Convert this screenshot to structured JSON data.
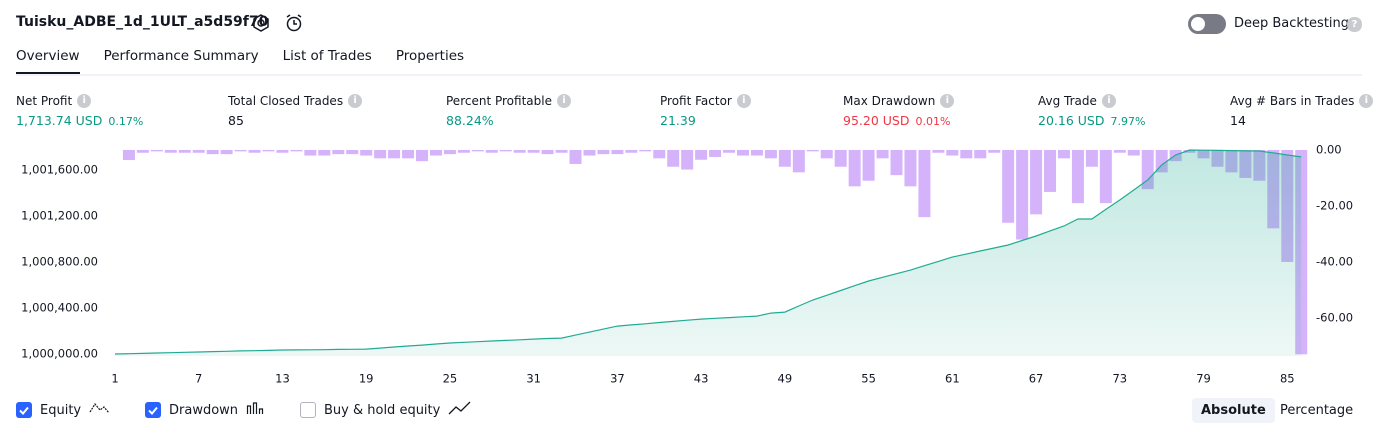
{
  "header": {
    "title": "Tuisku_ADBE_1d_1ULT_a5d59f70",
    "deep_backtesting": "Deep Backtesting",
    "help": "?"
  },
  "tabs": [
    "Overview",
    "Performance Summary",
    "List of Trades",
    "Properties"
  ],
  "metrics": [
    {
      "label": "Net Profit",
      "value": "1,713.74 USD",
      "pct": "0.17%",
      "color": "#089981"
    },
    {
      "label": "Total Closed Trades",
      "value": "85",
      "color": "#131722"
    },
    {
      "label": "Percent Profitable",
      "value": "88.24%",
      "color": "#089981"
    },
    {
      "label": "Profit Factor",
      "value": "21.39",
      "color": "#089981"
    },
    {
      "label": "Max Drawdown",
      "value": "95.20 USD",
      "pct": "0.01%",
      "color": "#f23645"
    },
    {
      "label": "Avg Trade",
      "value": "20.16 USD",
      "pct": "7.97%",
      "color": "#089981"
    },
    {
      "label": "Avg # Bars in Trades",
      "value": "14",
      "color": "#131722"
    }
  ],
  "chart_data": {
    "type": "combo",
    "x": [
      1,
      2,
      3,
      4,
      5,
      6,
      7,
      8,
      9,
      10,
      11,
      12,
      13,
      14,
      15,
      16,
      17,
      18,
      19,
      20,
      21,
      22,
      23,
      24,
      25,
      26,
      27,
      28,
      29,
      30,
      31,
      32,
      33,
      34,
      35,
      36,
      37,
      38,
      39,
      40,
      41,
      42,
      43,
      44,
      45,
      46,
      47,
      48,
      49,
      50,
      51,
      52,
      53,
      54,
      55,
      56,
      57,
      58,
      59,
      60,
      61,
      62,
      63,
      64,
      65,
      66,
      67,
      68,
      69,
      70,
      71,
      72,
      73,
      74,
      75,
      76,
      77,
      78,
      79,
      80,
      81,
      82,
      83,
      84,
      85,
      86
    ],
    "series": [
      {
        "name": "Equity",
        "type": "area",
        "color": "#22ab94",
        "values": [
          1000000,
          1000003,
          1000006,
          1000009,
          1000012,
          1000015,
          1000018,
          1000021,
          1000024,
          1000027,
          1000029,
          1000032,
          1000035,
          1000036,
          1000037,
          1000038,
          1000040,
          1000041,
          1000043,
          1000052,
          1000061,
          1000070,
          1000078,
          1000087,
          1000096,
          1000102,
          1000107,
          1000113,
          1000119,
          1000124,
          1000130,
          1000135,
          1000139,
          1000165,
          1000191,
          1000217,
          1000243,
          1000253,
          1000263,
          1000274,
          1000284,
          1000294,
          1000304,
          1000311,
          1000317,
          1000324,
          1000330,
          1000356,
          1000365,
          1000418,
          1000470,
          1000511,
          1000552,
          1000594,
          1000635,
          1000667,
          1000698,
          1000730,
          1000768,
          1000805,
          1000843,
          1000869,
          1000896,
          1000922,
          1000948,
          1000987,
          1001026,
          1001070,
          1001113,
          1001174,
          1001174,
          1001257,
          1001339,
          1001426,
          1001513,
          1001643,
          1001730,
          1001774,
          1001772,
          1001770,
          1001768,
          1001766,
          1001765,
          1001748,
          1001730,
          1001713.74
        ]
      },
      {
        "name": "Drawdown",
        "type": "bar",
        "axis": "y2",
        "color": "#d5b3fb",
        "values": [
          null,
          -3.6,
          -1,
          -0.5,
          -1,
          -1,
          -1,
          -1.5,
          -1.5,
          -0.5,
          -1,
          -0.5,
          -1,
          -0.5,
          -2,
          -2,
          -1.5,
          -1.5,
          -2,
          -3,
          -3,
          -3,
          -4,
          -2,
          -1.5,
          -1,
          -0.5,
          -1,
          -0.5,
          -1,
          -1,
          -1.5,
          -1,
          -5,
          -2,
          -1.5,
          -1.5,
          -1,
          -0.5,
          -3,
          -6,
          -7,
          -3.5,
          -2.5,
          -1,
          -2,
          -2,
          -3,
          -6,
          -8,
          -0.5,
          -3,
          -6,
          -13,
          -11,
          -3,
          -9,
          -13,
          -24,
          -1,
          -2,
          -3,
          -3,
          -1,
          -26,
          -32,
          -23,
          -15,
          -3,
          -19,
          -6,
          -19,
          -1,
          -2,
          -14,
          -8,
          -4,
          -1,
          -3,
          -6,
          -8,
          -10,
          -11,
          -28,
          -40,
          -73
        ]
      }
    ],
    "xlim": [
      0.5,
      86.7
    ],
    "xticks": [
      1,
      7,
      13,
      19,
      25,
      31,
      37,
      43,
      49,
      55,
      61,
      67,
      73,
      79,
      85
    ],
    "ylim": [
      999983,
      1001791
    ],
    "yticks": [
      {
        "value": 1000000,
        "label": "1,000,000.00"
      },
      {
        "value": 1000400,
        "label": "1,000,400.00"
      },
      {
        "value": 1000800,
        "label": "1,000,800.00"
      },
      {
        "value": 1001200,
        "label": "1,001,200.00"
      },
      {
        "value": 1001600,
        "label": "1,001,600.00"
      }
    ],
    "y2lim": [
      -73.6,
      0.7
    ],
    "y2ticks": [
      {
        "value": 0,
        "label": "0.00"
      },
      {
        "value": -20,
        "label": "-20.00"
      },
      {
        "value": -40,
        "label": "-40.00"
      },
      {
        "value": -60,
        "label": "-60.00"
      }
    ],
    "grid": false
  },
  "extra_toggle": "Buy & hold equity",
  "scale_buttons": [
    "Absolute",
    "Percentage"
  ]
}
